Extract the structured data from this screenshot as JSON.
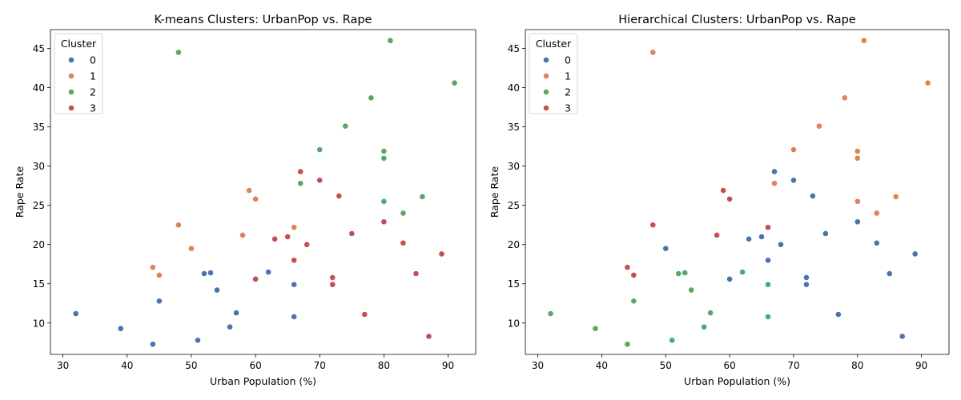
{
  "chart_data": [
    {
      "type": "scatter",
      "title": "K-means Clusters: UrbanPop vs. Rape",
      "xlabel": "Urban Population (%)",
      "ylabel": "Rape Rate",
      "xlim": [
        28.05,
        94.3
      ],
      "ylim": [
        6.0,
        47.4
      ],
      "xticks": [
        30,
        40,
        50,
        60,
        70,
        80,
        90
      ],
      "yticks": [
        10,
        15,
        20,
        25,
        30,
        35,
        40,
        45
      ],
      "grid": false,
      "legend": {
        "title": "Cluster",
        "placement": "top-left"
      },
      "series": [
        {
          "name": "0",
          "color": "#4c72b0",
          "points": [
            [
              32,
              11.2
            ],
            [
              39,
              9.3
            ],
            [
              44,
              7.3
            ],
            [
              45,
              12.8
            ],
            [
              51,
              7.8
            ],
            [
              52,
              16.3
            ],
            [
              53,
              16.4
            ],
            [
              54,
              14.2
            ],
            [
              56,
              9.5
            ],
            [
              57,
              11.3
            ],
            [
              62,
              16.5
            ],
            [
              66,
              14.9
            ],
            [
              66,
              10.8
            ]
          ]
        },
        {
          "name": "1",
          "color": "#dd8452",
          "points": [
            [
              44,
              17.1
            ],
            [
              45,
              16.1
            ],
            [
              48,
              22.5
            ],
            [
              50,
              19.5
            ],
            [
              58,
              21.2
            ],
            [
              59,
              26.9
            ],
            [
              60,
              25.8
            ],
            [
              66,
              22.2
            ]
          ]
        },
        {
          "name": "2",
          "color": "#55a868",
          "points": [
            [
              48,
              44.5
            ],
            [
              67,
              27.8
            ],
            [
              70,
              32.1
            ],
            [
              74,
              35.1
            ],
            [
              78,
              38.7
            ],
            [
              80,
              31.9
            ],
            [
              80,
              31.0
            ],
            [
              80,
              25.5
            ],
            [
              81,
              46.0
            ],
            [
              83,
              24.0
            ],
            [
              86,
              26.1
            ],
            [
              91,
              40.6
            ]
          ]
        },
        {
          "name": "3",
          "color": "#c44e52",
          "points": [
            [
              60,
              15.6
            ],
            [
              63,
              20.7
            ],
            [
              65,
              21.0
            ],
            [
              66,
              18.0
            ],
            [
              67,
              29.3
            ],
            [
              68,
              20.0
            ],
            [
              70,
              28.2
            ],
            [
              72,
              15.8
            ],
            [
              72,
              14.9
            ],
            [
              73,
              26.2
            ],
            [
              75,
              21.4
            ],
            [
              77,
              11.1
            ],
            [
              80,
              22.9
            ],
            [
              83,
              20.2
            ],
            [
              85,
              16.3
            ],
            [
              87,
              8.3
            ],
            [
              89,
              18.8
            ]
          ]
        }
      ]
    },
    {
      "type": "scatter",
      "title": "Hierarchical Clusters: UrbanPop vs. Rape",
      "xlabel": "Urban Population (%)",
      "ylabel": "Rape Rate",
      "xlim": [
        28.05,
        94.3
      ],
      "ylim": [
        6.0,
        47.4
      ],
      "xticks": [
        30,
        40,
        50,
        60,
        70,
        80,
        90
      ],
      "yticks": [
        10,
        15,
        20,
        25,
        30,
        35,
        40,
        45
      ],
      "grid": false,
      "legend": {
        "title": "Cluster",
        "placement": "top-left"
      },
      "series": [
        {
          "name": "0",
          "color": "#4c72b0",
          "points": [
            [
              50,
              19.5
            ],
            [
              60,
              15.6
            ],
            [
              63,
              20.7
            ],
            [
              65,
              21.0
            ],
            [
              66,
              18.0
            ],
            [
              67,
              29.3
            ],
            [
              68,
              20.0
            ],
            [
              70,
              28.2
            ],
            [
              72,
              15.8
            ],
            [
              72,
              14.9
            ],
            [
              73,
              26.2
            ],
            [
              75,
              21.4
            ],
            [
              77,
              11.1
            ],
            [
              80,
              22.9
            ],
            [
              83,
              20.2
            ],
            [
              85,
              16.3
            ],
            [
              87,
              8.3
            ],
            [
              89,
              18.8
            ]
          ]
        },
        {
          "name": "1",
          "color": "#dd8452",
          "points": [
            [
              48,
              44.5
            ],
            [
              67,
              27.8
            ],
            [
              70,
              32.1
            ],
            [
              74,
              35.1
            ],
            [
              78,
              38.7
            ],
            [
              80,
              31.9
            ],
            [
              80,
              31.0
            ],
            [
              80,
              25.5
            ],
            [
              81,
              46.0
            ],
            [
              83,
              24.0
            ],
            [
              86,
              26.1
            ],
            [
              91,
              40.6
            ]
          ]
        },
        {
          "name": "2",
          "color": "#55a868",
          "points": [
            [
              32,
              11.2
            ],
            [
              39,
              9.3
            ],
            [
              44,
              7.3
            ],
            [
              45,
              12.8
            ],
            [
              51,
              7.8
            ],
            [
              52,
              16.3
            ],
            [
              53,
              16.4
            ],
            [
              54,
              14.2
            ],
            [
              56,
              9.5
            ],
            [
              57,
              11.3
            ],
            [
              62,
              16.5
            ],
            [
              66,
              14.9
            ],
            [
              66,
              10.8
            ]
          ]
        },
        {
          "name": "3",
          "color": "#c44e52",
          "points": [
            [
              44,
              17.1
            ],
            [
              45,
              16.1
            ],
            [
              48,
              22.5
            ],
            [
              58,
              21.2
            ],
            [
              59,
              26.9
            ],
            [
              60,
              25.8
            ],
            [
              66,
              22.2
            ]
          ]
        }
      ]
    }
  ]
}
